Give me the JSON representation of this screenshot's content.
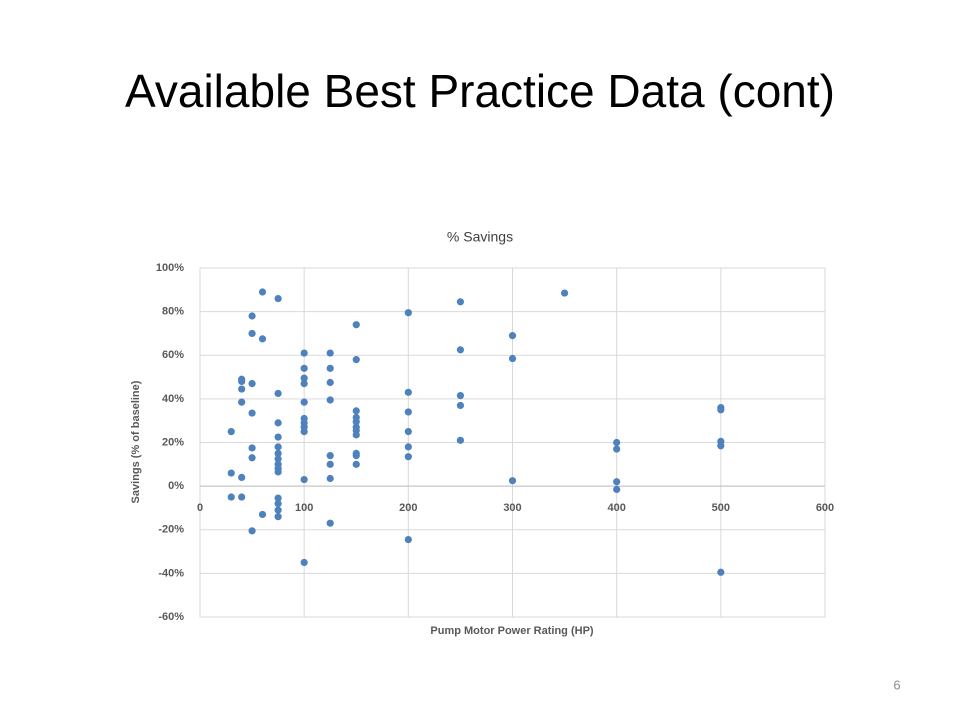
{
  "slide": {
    "title": "Available Best Practice Data (cont)",
    "page_number": "6"
  },
  "chart_data": {
    "type": "scatter",
    "title": "% Savings",
    "x_label": "Pump Motor Power Rating (HP)",
    "y_label": "Savings (% of baseline)",
    "xlim": [
      0,
      600
    ],
    "xticks": [
      0,
      100,
      200,
      300,
      400,
      500,
      600
    ],
    "ylim": [
      -60,
      100
    ],
    "yticks": [
      {
        "value": -60,
        "label": "-60%"
      },
      {
        "value": -40,
        "label": "-40%"
      },
      {
        "value": -20,
        "label": "-20%"
      },
      {
        "value": 0,
        "label": "0%"
      },
      {
        "value": 20,
        "label": "20%"
      },
      {
        "value": 40,
        "label": "40%"
      },
      {
        "value": 60,
        "label": "60%"
      },
      {
        "value": 80,
        "label": "80%"
      },
      {
        "value": 100,
        "label": "100%"
      }
    ],
    "grid": true,
    "color": "#4f81bd",
    "x": [
      30,
      30,
      30,
      40,
      40,
      40,
      40,
      40,
      40,
      50,
      50,
      50,
      50,
      50,
      50,
      50,
      60,
      60,
      60,
      75,
      75,
      75,
      75,
      75,
      75,
      75,
      75,
      75,
      75,
      75,
      75,
      75,
      75,
      100,
      100,
      100,
      100,
      100,
      100,
      100,
      100,
      100,
      100,
      100,
      125,
      125,
      125,
      125,
      125,
      125,
      125,
      125,
      150,
      150,
      150,
      150,
      150,
      150,
      150,
      150,
      150,
      150,
      150,
      200,
      200,
      200,
      200,
      200,
      200,
      200,
      250,
      250,
      250,
      250,
      250,
      300,
      300,
      300,
      350,
      400,
      400,
      400,
      400,
      500,
      500,
      500,
      500,
      500
    ],
    "y": [
      25,
      6,
      -5,
      49,
      48,
      44.5,
      38.5,
      4,
      -5,
      78,
      70,
      47,
      33.5,
      17.5,
      13,
      -20.5,
      89,
      67.5,
      -13,
      86,
      42.5,
      29,
      22.5,
      18,
      15,
      12.5,
      10,
      8,
      6.5,
      -5.5,
      -8,
      -11,
      -14,
      61,
      54,
      49.5,
      47,
      38.5,
      31,
      29,
      27,
      25,
      3,
      -35,
      61,
      54,
      47.5,
      39.5,
      14,
      10,
      3.5,
      -17,
      74,
      58,
      34.5,
      31.5,
      29.5,
      27,
      25.5,
      23.5,
      15,
      14,
      10,
      79.5,
      43,
      34,
      25,
      18,
      13.5,
      -24.5,
      84.5,
      62.5,
      41.5,
      37,
      21,
      69,
      58.5,
      2.5,
      88.5,
      20,
      17,
      2,
      -1.5,
      36,
      35,
      20.5,
      18.5,
      -39.5
    ]
  }
}
